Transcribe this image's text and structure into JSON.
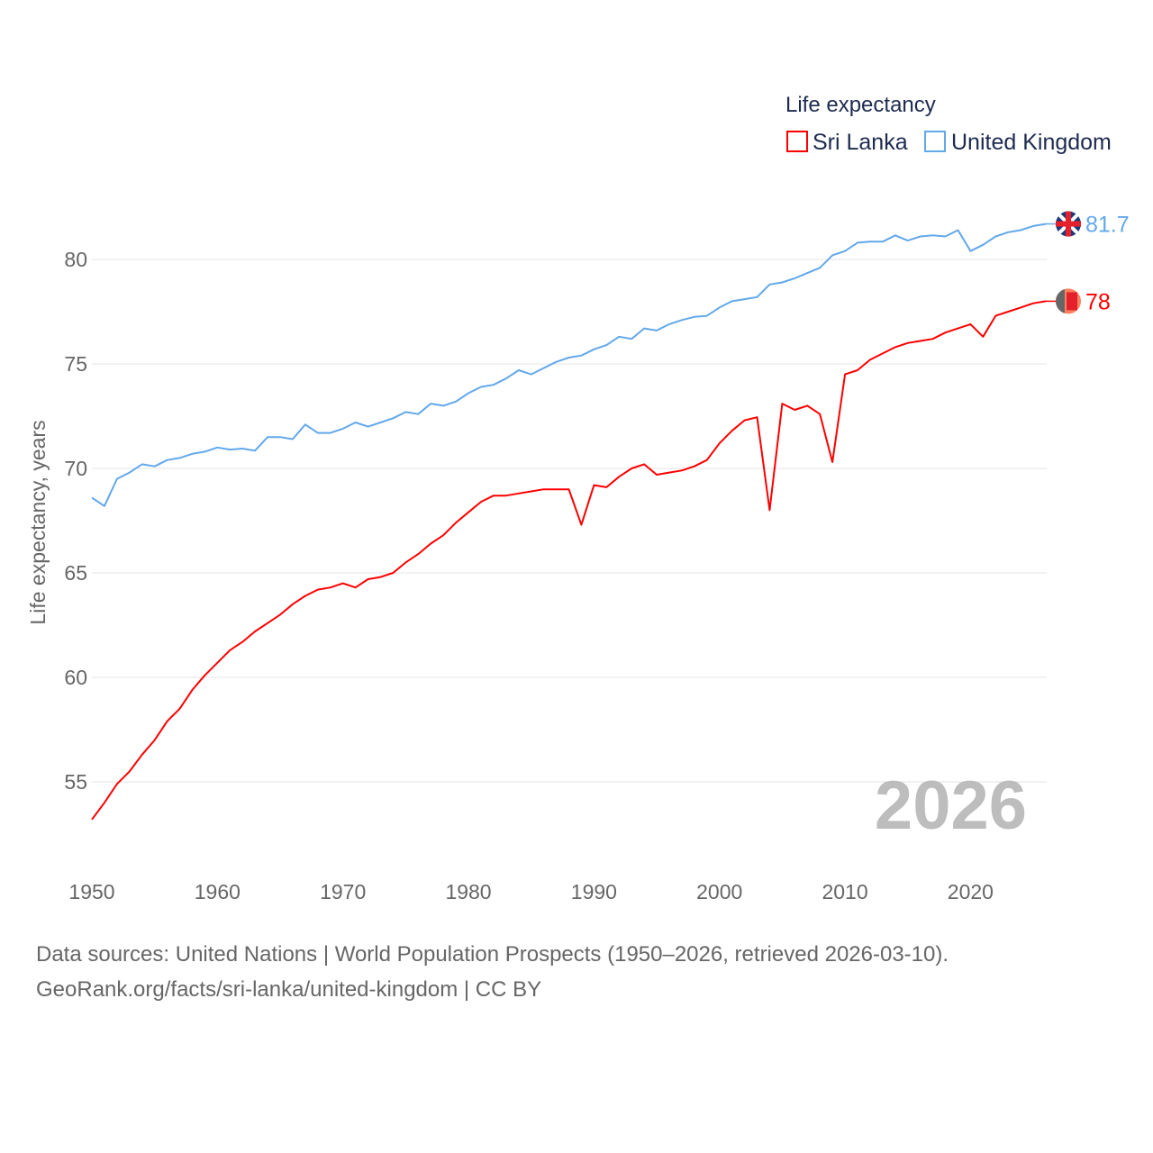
{
  "chart_data": {
    "type": "line",
    "title": "Life expectancy",
    "xlabel": "",
    "ylabel": "Life expectancy, years",
    "xlim": [
      1950,
      2026
    ],
    "ylim": [
      52,
      83
    ],
    "yticks": [
      55,
      60,
      65,
      70,
      75,
      80
    ],
    "xticks": [
      1950,
      1960,
      1970,
      1980,
      1990,
      2000,
      2010,
      2020
    ],
    "grid": true,
    "legend_placement": "top-right",
    "year_label": "2026",
    "x_start": 1950,
    "series": [
      {
        "name": "Sri Lanka",
        "color": "#ff0000",
        "end_label": "78",
        "values": [
          53.2,
          54.0,
          54.9,
          55.5,
          56.3,
          57.0,
          57.9,
          58.5,
          59.4,
          60.1,
          60.7,
          61.3,
          61.7,
          62.2,
          62.6,
          63.0,
          63.5,
          63.9,
          64.2,
          64.3,
          64.5,
          64.3,
          64.7,
          64.8,
          65.0,
          65.5,
          65.9,
          66.4,
          66.8,
          67.4,
          67.9,
          68.4,
          68.7,
          68.7,
          68.8,
          68.9,
          69.0,
          69.0,
          69.0,
          67.3,
          69.2,
          69.1,
          69.6,
          70.0,
          70.2,
          69.7,
          69.8,
          69.9,
          70.1,
          70.4,
          71.2,
          71.8,
          72.3,
          72.45,
          68.0,
          73.1,
          72.8,
          73.0,
          72.6,
          70.3,
          74.5,
          74.7,
          75.2,
          75.5,
          75.8,
          76.0,
          76.1,
          76.2,
          76.5,
          76.7,
          76.9,
          76.3,
          77.3,
          77.5,
          77.7,
          77.9,
          78.0
        ]
      },
      {
        "name": "United Kingdom",
        "color": "#62a8ea",
        "end_label": "81.7",
        "values": [
          68.6,
          68.2,
          69.5,
          69.8,
          70.2,
          70.1,
          70.4,
          70.5,
          70.7,
          70.8,
          71.0,
          70.9,
          70.95,
          70.85,
          71.5,
          71.5,
          71.4,
          72.1,
          71.7,
          71.7,
          71.9,
          72.2,
          72.0,
          72.2,
          72.4,
          72.7,
          72.6,
          73.1,
          73.0,
          73.2,
          73.6,
          73.9,
          74.0,
          74.3,
          74.7,
          74.5,
          74.8,
          75.1,
          75.3,
          75.4,
          75.7,
          75.9,
          76.3,
          76.2,
          76.7,
          76.6,
          76.9,
          77.1,
          77.25,
          77.3,
          77.7,
          78.0,
          78.1,
          78.2,
          78.8,
          78.9,
          79.1,
          79.35,
          79.6,
          80.2,
          80.4,
          80.8,
          80.85,
          80.85,
          81.15,
          80.9,
          81.1,
          81.15,
          81.1,
          81.4,
          80.4,
          80.7,
          81.1,
          81.3,
          81.4,
          81.6,
          81.7
        ]
      }
    ]
  },
  "footer": {
    "sources": "Data sources: United Nations | World Population Prospects (1950–2026, retrieved 2026-03-10).",
    "credit": "GeoRank.org/facts/sri-lanka/united-kingdom | CC BY"
  }
}
